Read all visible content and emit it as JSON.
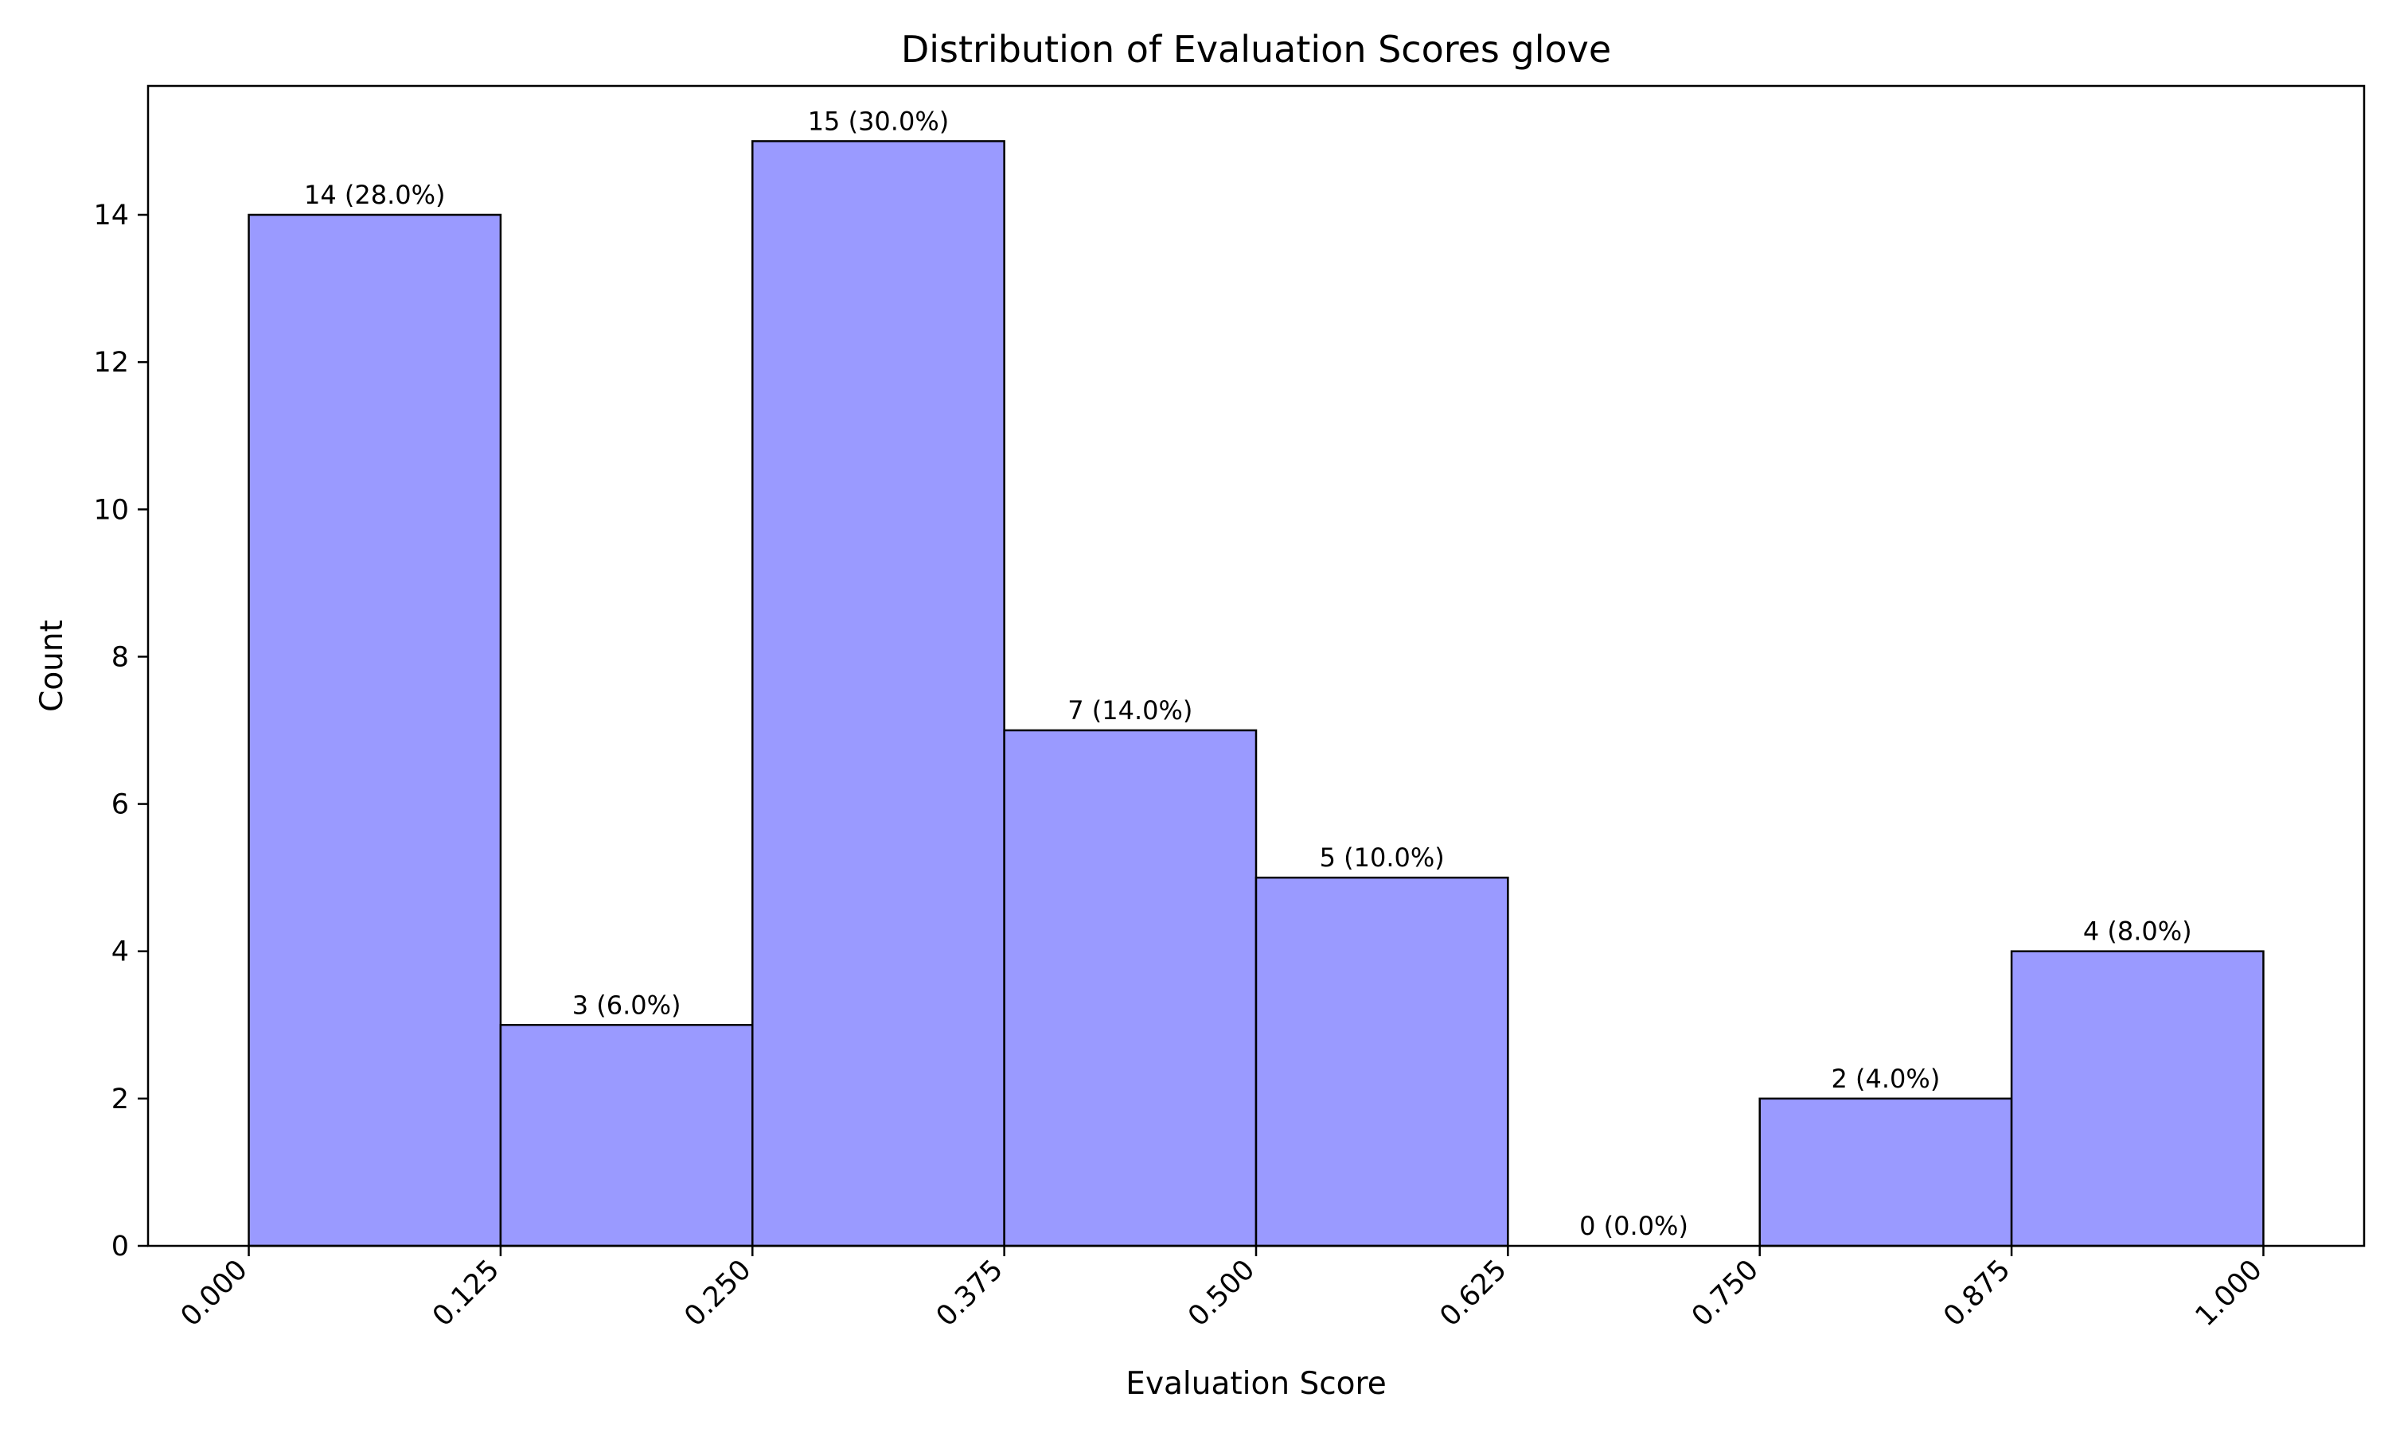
{
  "chart_data": {
    "type": "bar",
    "title": "Distribution of Evaluation Scores glove",
    "xlabel": "Evaluation Score",
    "ylabel": "Count",
    "bin_edges": [
      0.0,
      0.125,
      0.25,
      0.375,
      0.5,
      0.625,
      0.75,
      0.875,
      1.0
    ],
    "values": [
      14,
      3,
      15,
      7,
      5,
      0,
      2,
      4
    ],
    "bar_labels": [
      "14 (28.0%)",
      "3 (6.0%)",
      "15 (30.0%)",
      "7 (14.0%)",
      "5 (10.0%)",
      "0 (0.0%)",
      "2 (4.0%)",
      "4 (8.0%)"
    ],
    "x_ticks": [
      0.0,
      0.125,
      0.25,
      0.375,
      0.5,
      0.625,
      0.75,
      0.875,
      1.0
    ],
    "x_tick_labels": [
      "0.000",
      "0.125",
      "0.250",
      "0.375",
      "0.500",
      "0.625",
      "0.750",
      "0.875",
      "1.000"
    ],
    "y_ticks": [
      0,
      2,
      4,
      6,
      8,
      10,
      12,
      14
    ],
    "y_tick_labels": [
      "0",
      "2",
      "4",
      "6",
      "8",
      "10",
      "12",
      "14"
    ],
    "xlim": [
      -0.05,
      1.05
    ],
    "ylim": [
      0,
      15.75
    ],
    "grid": false,
    "bar_color": "#9a9aff",
    "edge_color": "#000000"
  }
}
